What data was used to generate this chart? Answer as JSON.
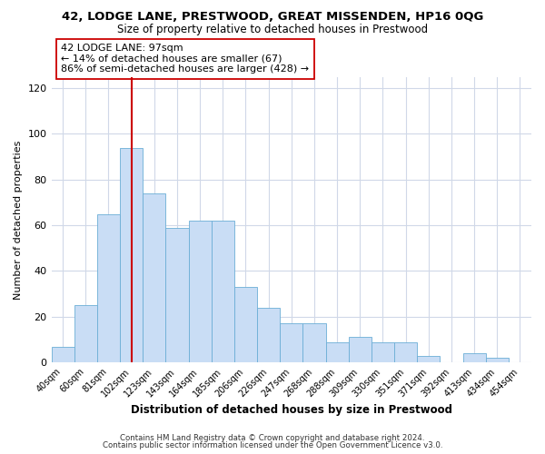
{
  "title": "42, LODGE LANE, PRESTWOOD, GREAT MISSENDEN, HP16 0QG",
  "subtitle": "Size of property relative to detached houses in Prestwood",
  "xlabel": "Distribution of detached houses by size in Prestwood",
  "ylabel": "Number of detached properties",
  "bin_labels": [
    "40sqm",
    "60sqm",
    "81sqm",
    "102sqm",
    "123sqm",
    "143sqm",
    "164sqm",
    "185sqm",
    "206sqm",
    "226sqm",
    "247sqm",
    "268sqm",
    "288sqm",
    "309sqm",
    "330sqm",
    "351sqm",
    "371sqm",
    "392sqm",
    "413sqm",
    "434sqm",
    "454sqm"
  ],
  "bar_values": [
    7,
    25,
    65,
    94,
    74,
    59,
    62,
    62,
    33,
    24,
    17,
    17,
    9,
    11,
    9,
    9,
    3,
    0,
    4,
    2,
    0
  ],
  "bar_color": "#c9ddf5",
  "bar_edge_color": "#6baed6",
  "vline_x": 3.0,
  "vline_color": "#cc0000",
  "annotation_text": "42 LODGE LANE: 97sqm\n← 14% of detached houses are smaller (67)\n86% of semi-detached houses are larger (428) →",
  "annotation_box_color": "#ffffff",
  "annotation_box_edge": "#cc0000",
  "ylim": [
    0,
    125
  ],
  "yticks": [
    0,
    20,
    40,
    60,
    80,
    100,
    120
  ],
  "footer_line1": "Contains HM Land Registry data © Crown copyright and database right 2024.",
  "footer_line2": "Contains public sector information licensed under the Open Government Licence v3.0.",
  "bg_color": "#ffffff",
  "plot_bg_color": "#ffffff",
  "grid_color": "#d0d8e8"
}
